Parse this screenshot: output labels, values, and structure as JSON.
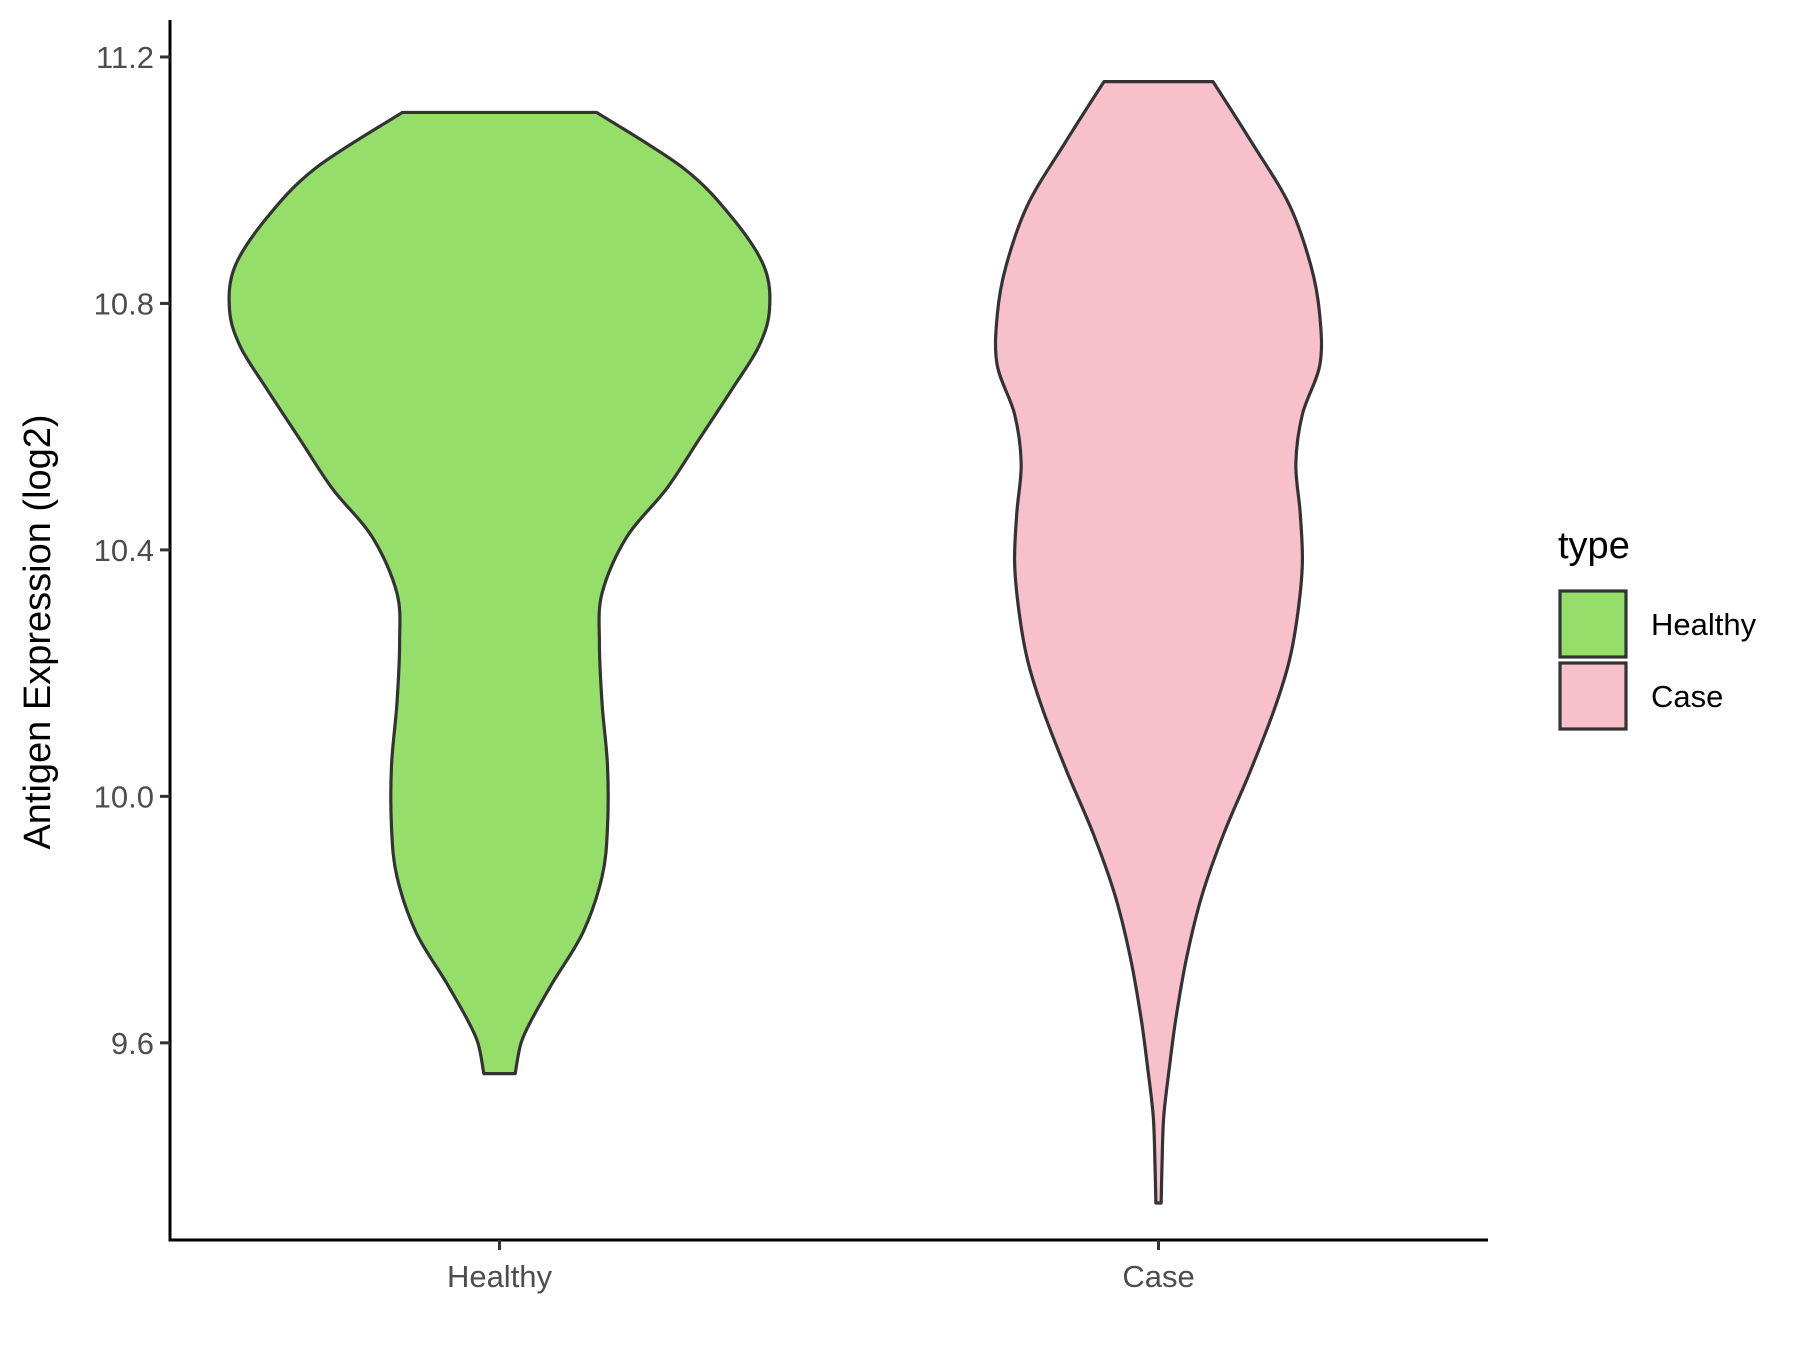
{
  "chart_data": {
    "type": "violin",
    "title": "",
    "xlabel": "",
    "ylabel": "Antigen Expression (log2)",
    "categories": [
      "Healthy",
      "Case"
    ],
    "ylim": [
      9.28,
      11.26
    ],
    "yticks": [
      9.6,
      10.0,
      10.4,
      10.8,
      11.2
    ],
    "ytick_labels": [
      "9.6",
      "10.0",
      "10.4",
      "10.8",
      "11.2"
    ],
    "legend": {
      "title": "type",
      "placement": "right",
      "entries": [
        "Healthy",
        "Case"
      ]
    },
    "grid": false,
    "series": [
      {
        "name": "Healthy",
        "color": "#95DE6A",
        "min": 9.55,
        "max": 11.11,
        "density": [
          [
            9.55,
            0.058
          ],
          [
            9.6,
            0.08
          ],
          [
            9.64,
            0.122
          ],
          [
            9.7,
            0.2
          ],
          [
            9.78,
            0.31
          ],
          [
            9.87,
            0.38
          ],
          [
            9.95,
            0.4
          ],
          [
            10.05,
            0.4
          ],
          [
            10.15,
            0.38
          ],
          [
            10.25,
            0.37
          ],
          [
            10.33,
            0.38
          ],
          [
            10.42,
            0.47
          ],
          [
            10.5,
            0.62
          ],
          [
            10.58,
            0.74
          ],
          [
            10.66,
            0.86
          ],
          [
            10.73,
            0.96
          ],
          [
            10.79,
            1.0
          ],
          [
            10.86,
            0.98
          ],
          [
            10.94,
            0.86
          ],
          [
            11.02,
            0.68
          ],
          [
            11.11,
            0.36
          ]
        ]
      },
      {
        "name": "Case",
        "color": "#F7C0CB",
        "min": 9.34,
        "max": 11.16,
        "density": [
          [
            9.34,
            0.012
          ],
          [
            9.4,
            0.016
          ],
          [
            9.48,
            0.024
          ],
          [
            9.56,
            0.05
          ],
          [
            9.64,
            0.08
          ],
          [
            9.74,
            0.13
          ],
          [
            9.84,
            0.2
          ],
          [
            9.94,
            0.3
          ],
          [
            10.04,
            0.42
          ],
          [
            10.14,
            0.53
          ],
          [
            10.22,
            0.6
          ],
          [
            10.3,
            0.64
          ],
          [
            10.38,
            0.66
          ],
          [
            10.46,
            0.65
          ],
          [
            10.54,
            0.63
          ],
          [
            10.62,
            0.66
          ],
          [
            10.7,
            0.74
          ],
          [
            10.78,
            0.74
          ],
          [
            10.86,
            0.7
          ],
          [
            10.96,
            0.6
          ],
          [
            11.06,
            0.43
          ],
          [
            11.16,
            0.25
          ]
        ]
      }
    ]
  }
}
